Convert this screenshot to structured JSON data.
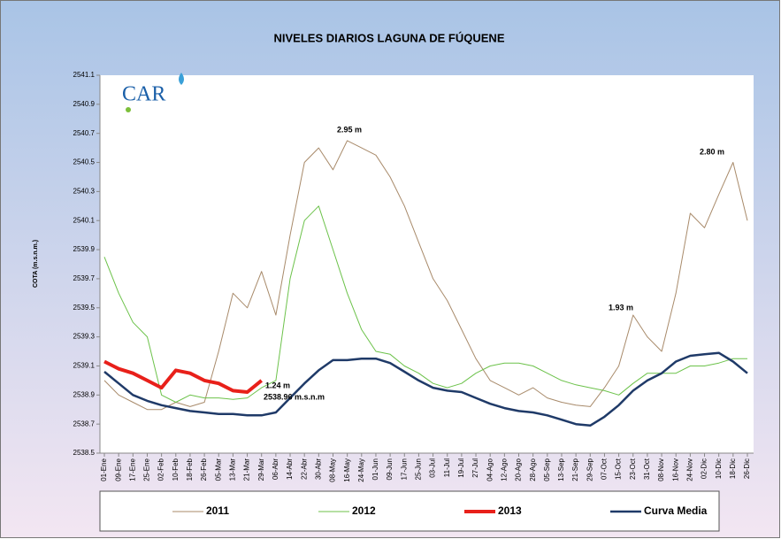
{
  "chart_data": {
    "type": "line",
    "title": "NIVELES DIARIOS LAGUNA DE FÚQUENE",
    "y_label": "COTA (m.s.n.m.)",
    "logo": "CAR",
    "categories": [
      "01-Ene",
      "09-Ene",
      "17-Ene",
      "25-Ene",
      "02-Feb",
      "10-Feb",
      "18-Feb",
      "26-Feb",
      "05-Mar",
      "13-Mar",
      "21-Mar",
      "29-Mar",
      "06-Abr",
      "14-Abr",
      "22-Abr",
      "30-Abr",
      "08-May",
      "16-May",
      "24-May",
      "01-Jun",
      "09-Jun",
      "17-Jun",
      "25-Jun",
      "03-Jul",
      "11-Jul",
      "19-Jul",
      "27-Jul",
      "04-Ago",
      "12-Ago",
      "20-Ago",
      "28-Ago",
      "05-Sep",
      "13-Sep",
      "21-Sep",
      "29-Sep",
      "07-Oct",
      "15-Oct",
      "23-Oct",
      "31-Oct",
      "08-Nov",
      "16-Nov",
      "24-Nov",
      "02-Dic",
      "10-Dic",
      "18-Dic",
      "26-Dic"
    ],
    "series": [
      {
        "name": "2011",
        "color": "#a88a6a",
        "width": 1,
        "values": [
          2539.0,
          2538.9,
          2538.85,
          2538.8,
          2538.8,
          2538.85,
          2538.82,
          2538.85,
          2539.2,
          2539.6,
          2539.5,
          2539.75,
          2539.45,
          2540.0,
          2540.5,
          2540.6,
          2540.45,
          2540.65,
          2540.6,
          2540.55,
          2540.4,
          2540.2,
          2539.95,
          2539.7,
          2539.55,
          2539.35,
          2539.15,
          2539.0,
          2538.95,
          2538.9,
          2538.95,
          2538.88,
          2538.85,
          2538.83,
          2538.82,
          2538.95,
          2539.1,
          2539.45,
          2539.3,
          2539.2,
          2539.6,
          2540.15,
          2540.05,
          2540.28,
          2540.5,
          2540.1
        ]
      },
      {
        "name": "2012",
        "color": "#6cc24a",
        "width": 1,
        "values": [
          2539.85,
          2539.6,
          2539.4,
          2539.3,
          2538.9,
          2538.85,
          2538.9,
          2538.88,
          2538.88,
          2538.87,
          2538.88,
          2538.95,
          2539.0,
          2539.7,
          2540.1,
          2540.2,
          2539.9,
          2539.6,
          2539.35,
          2539.2,
          2539.18,
          2539.1,
          2539.05,
          2538.98,
          2538.95,
          2538.98,
          2539.05,
          2539.1,
          2539.12,
          2539.12,
          2539.1,
          2539.05,
          2539.0,
          2538.97,
          2538.95,
          2538.93,
          2538.9,
          2538.98,
          2539.05,
          2539.05,
          2539.05,
          2539.1,
          2539.1,
          2539.12,
          2539.15,
          2539.15
        ]
      },
      {
        "name": "2013",
        "color": "#e8201a",
        "width": 4,
        "values": [
          2539.13,
          2539.08,
          2539.05,
          2539.0,
          2538.95,
          2539.07,
          2539.05,
          2539.0,
          2538.98,
          2538.93,
          2538.92,
          2539.0,
          null,
          null,
          null,
          null,
          null,
          null,
          null,
          null,
          null,
          null,
          null,
          null,
          null,
          null,
          null,
          null,
          null,
          null,
          null,
          null,
          null,
          null,
          null,
          null,
          null,
          null,
          null,
          null,
          null,
          null,
          null,
          null,
          null,
          null
        ]
      },
      {
        "name": "Curva Media",
        "color": "#1f3a68",
        "width": 2.5,
        "values": [
          2539.06,
          2538.98,
          2538.9,
          2538.86,
          2538.83,
          2538.81,
          2538.79,
          2538.78,
          2538.77,
          2538.77,
          2538.76,
          2538.76,
          2538.78,
          2538.88,
          2538.98,
          2539.07,
          2539.14,
          2539.14,
          2539.15,
          2539.15,
          2539.12,
          2539.06,
          2539.0,
          2538.95,
          2538.93,
          2538.92,
          2538.88,
          2538.84,
          2538.81,
          2538.79,
          2538.78,
          2538.76,
          2538.73,
          2538.7,
          2538.69,
          2538.75,
          2538.83,
          2538.93,
          2539.0,
          2539.05,
          2539.13,
          2539.17,
          2539.18,
          2539.19,
          2539.13,
          2539.05
        ]
      }
    ],
    "annotations": [
      "2.95 m",
      "2.80 m",
      "1.93 m",
      "1.24 m",
      "2538.96  m.s.n.m"
    ],
    "ylim": [
      2538.5,
      2541.1
    ],
    "yticks": [
      2538.5,
      2538.7,
      2538.9,
      2539.1,
      2539.3,
      2539.5,
      2539.7,
      2539.9,
      2540.1,
      2540.3,
      2540.5,
      2540.7,
      2540.9,
      2541.1
    ],
    "grid": false
  }
}
